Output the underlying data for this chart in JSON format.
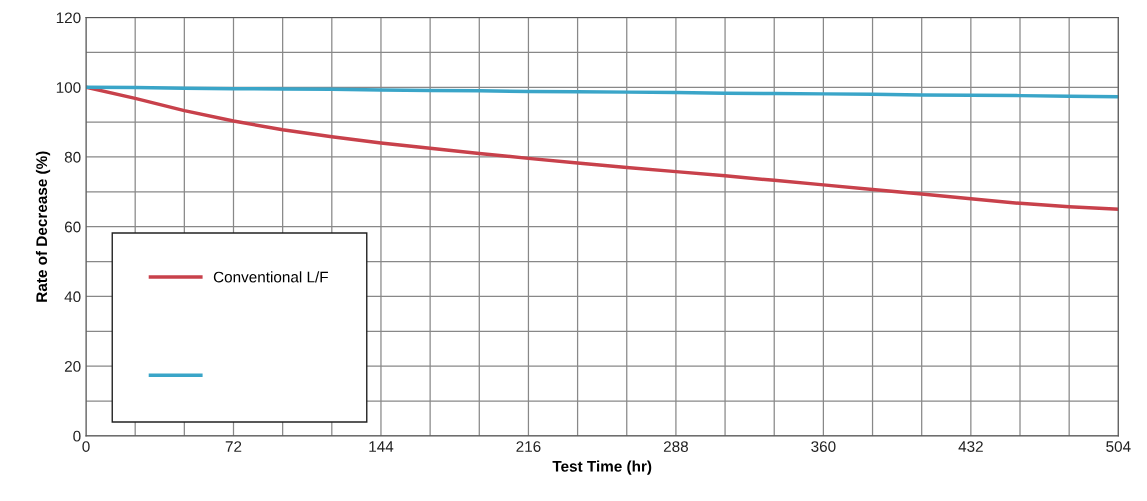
{
  "chart_data": {
    "type": "line",
    "xlabel": "Test Time (hr)",
    "ylabel": "Rate of Decrease (%)",
    "xlim": [
      0,
      504
    ],
    "ylim": [
      0,
      120
    ],
    "xticks": [
      0,
      {
        "value": 24,
        "label": null
      },
      {
        "value": 48,
        "label": null
      },
      72,
      {
        "value": 96,
        "label": null
      },
      {
        "value": 120,
        "label": null
      },
      144,
      {
        "value": 168,
        "label": null
      },
      {
        "value": 192,
        "label": null
      },
      216,
      {
        "value": 240,
        "label": null
      },
      {
        "value": 264,
        "label": null
      },
      288,
      {
        "value": 312,
        "label": null
      },
      {
        "value": 336,
        "label": null
      },
      360,
      {
        "value": 384,
        "label": null
      },
      {
        "value": 408,
        "label": null
      },
      432,
      {
        "value": 456,
        "label": null
      },
      {
        "value": 480,
        "label": null
      },
      504
    ],
    "yticks": [
      0,
      {
        "value": 10,
        "label": null
      },
      20,
      {
        "value": 30,
        "label": null
      },
      40,
      {
        "value": 50,
        "label": null
      },
      60,
      {
        "value": 70,
        "label": null
      },
      80,
      {
        "value": 90,
        "label": null
      },
      100,
      {
        "value": 110,
        "label": null
      },
      120
    ],
    "grid": true,
    "legend": "bottom left",
    "marker": "none",
    "line_style": "solid",
    "x": [
      0,
      24,
      48,
      72,
      96,
      120,
      144,
      168,
      192,
      216,
      240,
      264,
      288,
      312,
      336,
      360,
      384,
      408,
      432,
      456,
      480,
      504
    ],
    "series": [
      {
        "name": "Conventional L/F",
        "color": "#c8414b",
        "values": [
          100,
          96.8,
          93.3,
          90.3,
          87.8,
          85.8,
          84.0,
          82.5,
          81.0,
          79.6,
          78.3,
          77.0,
          75.8,
          74.6,
          73.3,
          72.0,
          70.7,
          69.4,
          68.0,
          66.7,
          65.7,
          65.0
        ]
      },
      {
        "color": "#3aa5c8",
        "values": [
          100,
          99.9,
          99.7,
          99.6,
          99.5,
          99.4,
          99.2,
          99.1,
          99.0,
          98.8,
          98.7,
          98.6,
          98.5,
          98.3,
          98.2,
          98.1,
          98.0,
          97.8,
          97.7,
          97.6,
          97.4,
          97.3
        ]
      }
    ]
  }
}
